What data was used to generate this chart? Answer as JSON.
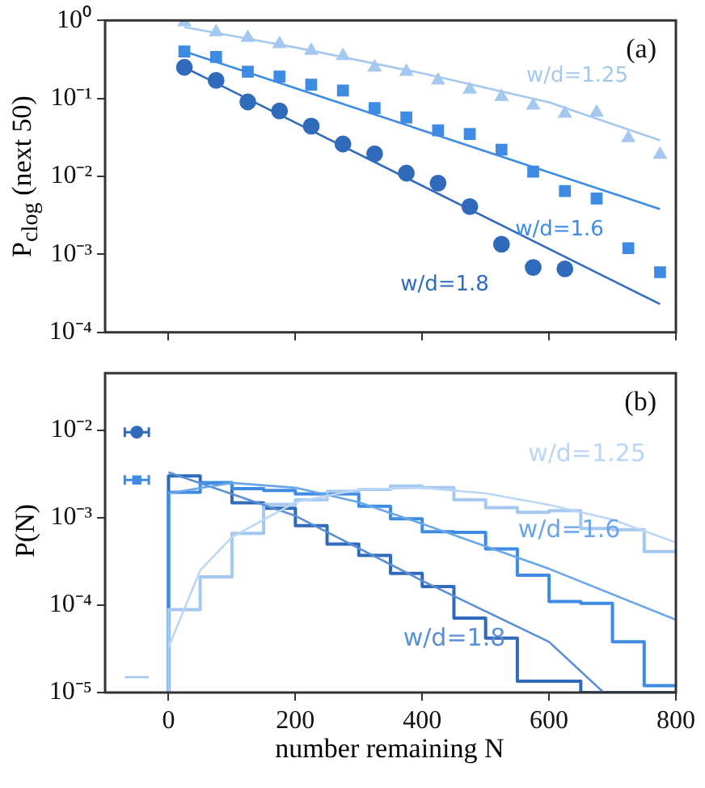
{
  "chart_data": [
    {
      "type": "scatter",
      "ylabel": "P$_{clog}$ (next 50)",
      "log": true,
      "tick_labels": "y",
      "xlim": [
        -100,
        800
      ],
      "xticks": [
        0,
        200,
        400,
        600,
        800
      ],
      "ylim": [
        0.0001,
        1
      ],
      "yticks": [
        {
          "value": 0.0001,
          "label": "10⁻⁴"
        },
        {
          "value": 0.001,
          "label": "10⁻³"
        },
        {
          "value": 0.01,
          "label": "10⁻²"
        },
        {
          "value": 0.1,
          "label": "10⁻¹"
        },
        {
          "value": 1,
          "label": "10⁰"
        }
      ],
      "annotations": [
        "(a)"
      ],
      "series": [
        {
          "marker": "triangle",
          "color": "#a5c8f0",
          "x": [
            25,
            75,
            125,
            175,
            225,
            275,
            325,
            375,
            425,
            475,
            525,
            575,
            625,
            675,
            725,
            775
          ],
          "values": [
            0.95,
            0.71,
            0.6,
            0.5,
            0.41,
            0.35,
            0.25,
            0.22,
            0.17,
            0.13,
            0.105,
            0.081,
            0.064,
            0.066,
            0.031,
            0.019
          ]
        },
        {
          "marker": "square",
          "color": "#3d8be3",
          "x": [
            25,
            75,
            125,
            175,
            225,
            275,
            325,
            375,
            425,
            475,
            525,
            575,
            625,
            675,
            725,
            775
          ],
          "values": [
            0.4,
            0.34,
            0.22,
            0.19,
            0.15,
            0.126,
            0.075,
            0.057,
            0.039,
            0.035,
            0.022,
            0.0115,
            0.0065,
            0.0052,
            0.0012,
            0.00059
          ]
        },
        {
          "marker": "circle",
          "color": "#2f6abb",
          "x": [
            25,
            75,
            125,
            175,
            225,
            275,
            325,
            375,
            425,
            475,
            525,
            575,
            625
          ],
          "values": [
            0.25,
            0.17,
            0.09,
            0.069,
            0.044,
            0.026,
            0.0195,
            0.011,
            0.0082,
            0.0041,
            0.00135,
            0.00068,
            0.00065
          ]
        },
        {
          "type": "line",
          "name": "w/d=1.25",
          "color": "#a5c8f0",
          "x": [
            25,
            200,
            400,
            600,
            775
          ],
          "values": [
            0.82,
            0.45,
            0.21,
            0.089,
            0.029
          ]
        },
        {
          "type": "line",
          "name": "w/d=1.6",
          "color": "#3d8be3",
          "x": [
            25,
            775
          ],
          "values": [
            0.4,
            0.0038
          ]
        },
        {
          "type": "line",
          "name": "w/d=1.8",
          "color": "#2f6abb",
          "x": [
            25,
            775
          ],
          "values": [
            0.25,
            0.00023
          ]
        }
      ]
    },
    {
      "type": "histogram",
      "ylabel": "P(N)",
      "xlabel": "number remaining N",
      "log": true,
      "xlim": [
        -100,
        800
      ],
      "xticks": [
        0,
        200,
        400,
        600,
        800
      ],
      "ylim": [
        1e-05,
        0.045
      ],
      "yticks": [
        {
          "value": 1e-05,
          "label": "10⁻⁵"
        },
        {
          "value": 0.0001,
          "label": "10⁻⁴"
        },
        {
          "value": 0.001,
          "label": "10⁻³"
        },
        {
          "value": 0.01,
          "label": "10⁻²"
        }
      ],
      "bins": [
        0,
        50,
        100,
        150,
        200,
        250,
        300,
        350,
        400,
        450,
        500,
        550,
        600,
        650,
        700,
        750,
        800
      ],
      "annotations": [
        "(b)"
      ],
      "series": [
        {
          "color": "#a5c8f0",
          "values": [
            8.9e-05,
            0.00021,
            0.00066,
            0.00142,
            0.0016,
            0.002,
            0.0021,
            0.0023,
            0.0022,
            0.0016,
            0.0013,
            0.00115,
            0.0012,
            0.00075,
            0.00073,
            0.00041
          ]
        },
        {
          "color": "#3d8be3",
          "values": [
            0.00195,
            0.0025,
            0.00215,
            0.00205,
            0.00187,
            0.00187,
            0.00135,
            0.00097,
            0.00069,
            0.00068,
            0.00044,
            0.00022,
            0.00011,
            0.000105,
            3.8e-05,
            1.2e-05
          ]
        },
        {
          "color": "#2f6abb",
          "values": [
            0.003,
            0.0025,
            0.00148,
            0.00128,
            0.00081,
            0.0005,
            0.00037,
            0.00023,
            0.000163,
            7.1e-05,
            4.2e-05,
            1.35e-05,
            1.35e-05,
            1e-05,
            1e-05,
            1e-05
          ]
        },
        {
          "type": "line",
          "name": "w/d=1.25",
          "color": "#bcd6f5",
          "x": [
            0,
            50,
            100,
            200,
            300,
            400,
            500,
            600,
            700,
            800
          ],
          "values": [
            3.3e-05,
            0.00025,
            0.0006,
            0.0015,
            0.0021,
            0.0022,
            0.0019,
            0.0014,
            0.00095,
            0.00052
          ]
        },
        {
          "type": "line",
          "name": "w/d=1.6",
          "color": "#6aa6ea",
          "x": [
            0,
            100,
            200,
            300,
            400,
            600,
            800
          ],
          "values": [
            0.0019,
            0.0025,
            0.0022,
            0.0015,
            0.00085,
            0.00026,
            6.8e-05
          ]
        },
        {
          "type": "line",
          "name": "w/d=1.8",
          "color": "#5a8fd6",
          "x": [
            0,
            200,
            400,
            600,
            686
          ],
          "values": [
            0.0033,
            0.00105,
            0.00019,
            3.8e-05,
            1e-05
          ]
        },
        {
          "type": "scatter",
          "marker": "circle",
          "color": "#2f6abb",
          "x": [
            -50
          ],
          "values": [
            0.0095
          ],
          "xerrors": [
            [
              -69,
              -31
            ]
          ]
        },
        {
          "type": "scatter",
          "marker": "square",
          "color": "#3d8be3",
          "x": [
            -50
          ],
          "values": [
            0.0027
          ],
          "xerrors": [
            [
              -69,
              -31
            ]
          ]
        },
        {
          "type": "line",
          "color": "#a5c8f0",
          "x": [
            -69,
            -31
          ],
          "values": [
            1.5e-05,
            1.5e-05
          ]
        }
      ]
    }
  ]
}
